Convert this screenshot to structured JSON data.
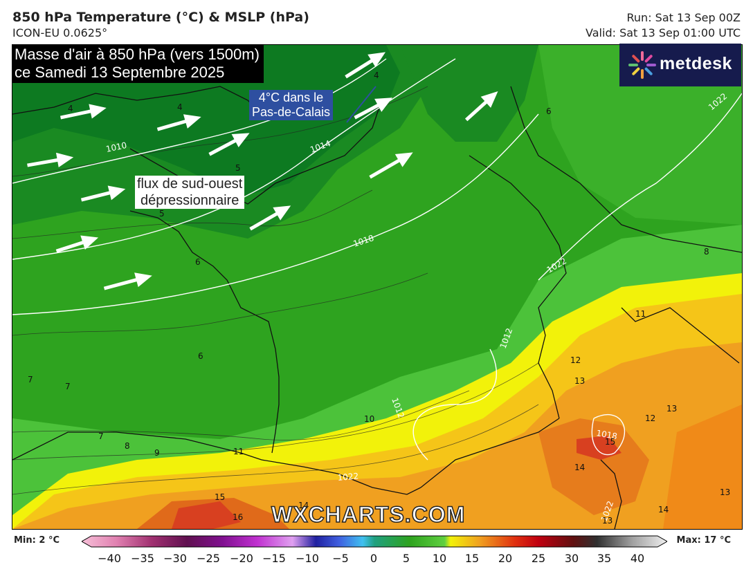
{
  "header": {
    "title": "850 hPa Temperature (°C) & MSLP (hPa)",
    "model": "ICON-EU 0.0625°",
    "run": "Run: Sat 13 Sep 00Z",
    "valid": "Valid: Sat 13 Sep 01:00 UTC"
  },
  "annotations": {
    "title_line1": "Masse d'air à 850 hPa (vers 1500m)",
    "title_line2": "ce Samedi 13 Septembre 2025",
    "pas_line1": "4°C dans le",
    "pas_line2": "Pas-de-Calais",
    "flux_line1": "flux de sud-ouest",
    "flux_line2": "dépressionnaire"
  },
  "logo": {
    "text": "metdesk"
  },
  "watermark": "WXCHARTS.COM",
  "legend": {
    "min_label": "Min: 2 °C",
    "max_label": "Max: 17 °C",
    "ticks": [
      "−40",
      "−35",
      "−30",
      "−25",
      "−20",
      "−15",
      "−10",
      "−5",
      "0",
      "5",
      "10",
      "15",
      "20",
      "25",
      "30",
      "35",
      "40"
    ]
  },
  "isobar_labels": [
    "1010",
    "1014",
    "1018",
    "1022",
    "1022",
    "1012",
    "1012",
    "1018",
    "1022",
    "1022"
  ],
  "temperature_labels": [
    "4",
    "4",
    "4",
    "5",
    "5",
    "6",
    "6",
    "6",
    "7",
    "7",
    "7",
    "8",
    "8",
    "9",
    "10",
    "11",
    "11",
    "12",
    "12",
    "13",
    "13",
    "13",
    "13",
    "14",
    "14",
    "14",
    "15",
    "15",
    "16"
  ],
  "colors": {
    "green_dark": "#0d7a21",
    "green_mid": "#2ea31f",
    "green_light": "#4cc23a",
    "yellow": "#f2f20a",
    "orange": "#f0a020",
    "orange_dark": "#e06a1a",
    "red": "#d84020",
    "logo_bg": "#161b4d"
  }
}
